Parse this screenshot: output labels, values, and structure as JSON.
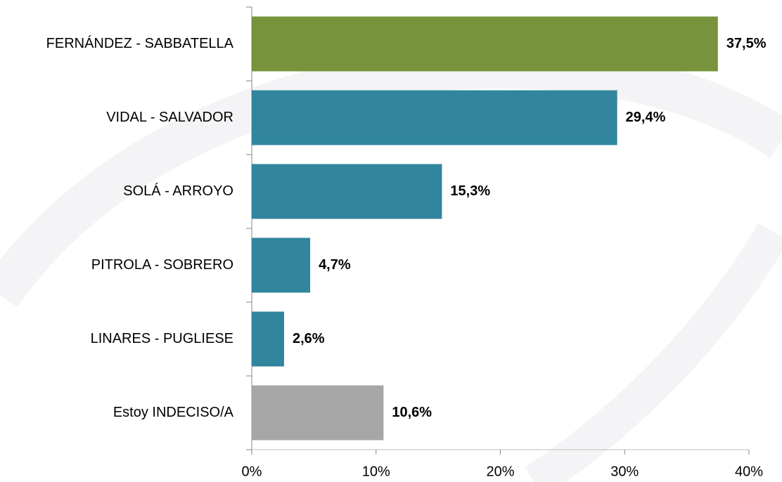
{
  "chart_data": {
    "type": "hbar",
    "categories": [
      "FERNÁNDEZ - SABBATELLA",
      "VIDAL - SALVADOR",
      "SOLÁ - ARROYO",
      "PITROLA - SOBRERO",
      "LINARES - PUGLIESE",
      "Estoy INDECISO/A"
    ],
    "values": [
      37.5,
      29.4,
      15.3,
      4.7,
      2.6,
      10.6
    ],
    "value_labels": [
      "37,5%",
      "29,4%",
      "15,3%",
      "4,7%",
      "2,6%",
      "10,6%"
    ],
    "colors": [
      "#77933c",
      "#31859c",
      "#31859c",
      "#31859c",
      "#31859c",
      "#a6a6a6"
    ],
    "xlim": [
      0,
      40
    ],
    "xticks": [
      {
        "value": 0,
        "label": "0%"
      },
      {
        "value": 10,
        "label": "10%"
      },
      {
        "value": 20,
        "label": "20%"
      },
      {
        "value": 30,
        "label": "30%"
      },
      {
        "value": 40,
        "label": "40%"
      }
    ]
  }
}
